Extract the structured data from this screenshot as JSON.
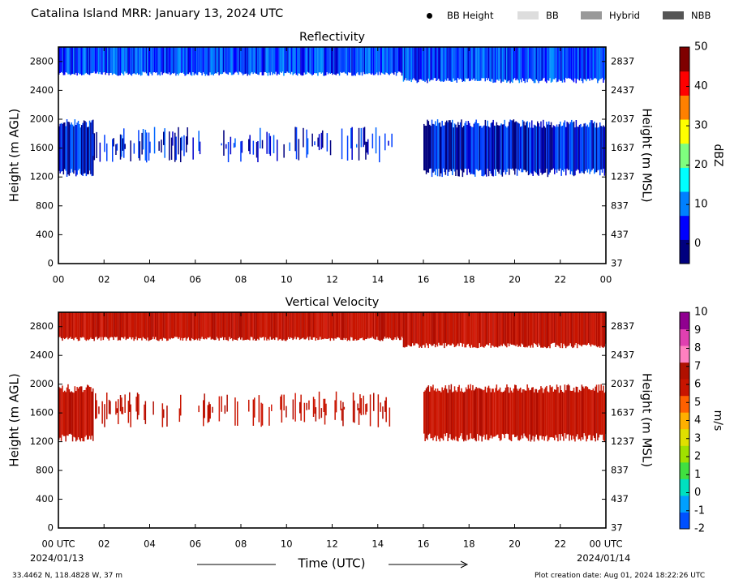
{
  "header": {
    "title": "Catalina Island MRR:  January 13, 2024 UTC",
    "legend": [
      {
        "kind": "marker",
        "label": "BB Height",
        "color": "#000000"
      },
      {
        "kind": "swatch",
        "label": "BB",
        "color": "#dddddd"
      },
      {
        "kind": "swatch",
        "label": "Hybrid",
        "color": "#999999"
      },
      {
        "kind": "swatch",
        "label": "NBB",
        "color": "#555555"
      }
    ]
  },
  "footer": {
    "location": "33.4462 N, 118.4828 W, 37 m",
    "creation": "Plot creation date: Aug 01, 2024 18:22:26 UTC",
    "date_start": "2024/01/13",
    "date_end": "2024/01/14",
    "xlabel": "Time (UTC)"
  },
  "chart_data": [
    {
      "type": "heatmap",
      "title": "Reflectivity",
      "xlabel": "",
      "ylabel": "Height (m AGL)",
      "ylabel_right": "Height (m MSL)",
      "x_ticks": [
        "00",
        "02",
        "04",
        "06",
        "08",
        "10",
        "12",
        "14",
        "16",
        "18",
        "20",
        "22",
        "00"
      ],
      "x_range_hours": [
        0,
        24
      ],
      "y_ticks": [
        0,
        400,
        800,
        1200,
        1600,
        2000,
        2400,
        2800
      ],
      "y_ticks_right": [
        37,
        437,
        837,
        1237,
        1637,
        2037,
        2437,
        2837
      ],
      "ylim": [
        0,
        3000
      ],
      "colorbar": {
        "label": "dBZ",
        "range": [
          -5,
          50
        ],
        "ticks": [
          0,
          10,
          20,
          30,
          40,
          50
        ],
        "colors": [
          "#00007f",
          "#0000ff",
          "#0080ff",
          "#00ffff",
          "#7fff7f",
          "#ffff00",
          "#ff8000",
          "#ff0000",
          "#7f0000"
        ]
      },
      "layers": [
        {
          "name": "upper",
          "x_start": 0,
          "x_end": 15.1,
          "y_bottom": 2600,
          "y_top": 3000,
          "value": 5
        },
        {
          "name": "upper",
          "x_start": 15.1,
          "x_end": 24,
          "y_bottom": 2500,
          "y_top": 3000,
          "value": 5
        },
        {
          "name": "lower",
          "x_start": 0,
          "x_end": 1.5,
          "y_bottom": 1200,
          "y_top": 2000,
          "value": 1
        },
        {
          "name": "lower",
          "x_start": 1.5,
          "x_end": 14.6,
          "y_bottom": 1400,
          "y_top": 1900,
          "value": 0
        },
        {
          "name": "lower",
          "x_start": 16.0,
          "x_end": 24,
          "y_bottom": 1200,
          "y_top": 2000,
          "value": 1
        }
      ]
    },
    {
      "type": "heatmap",
      "title": "Vertical Velocity",
      "xlabel": "Time (UTC)",
      "ylabel": "Height (m AGL)",
      "ylabel_right": "Height (m MSL)",
      "x_ticks": [
        "00 UTC",
        "02",
        "04",
        "06",
        "08",
        "10",
        "12",
        "14",
        "16",
        "18",
        "20",
        "22",
        "00 UTC"
      ],
      "x_range_hours": [
        0,
        24
      ],
      "y_ticks": [
        0,
        400,
        800,
        1200,
        1600,
        2000,
        2400,
        2800
      ],
      "y_ticks_right": [
        37,
        437,
        837,
        1237,
        1637,
        2037,
        2437,
        2837
      ],
      "ylim": [
        0,
        3000
      ],
      "colorbar": {
        "label": "m/s",
        "range": [
          -2,
          10
        ],
        "ticks": [
          -2,
          -1,
          0,
          1,
          2,
          3,
          4,
          5,
          6,
          7,
          8,
          9,
          10
        ],
        "colors": [
          "#0050ff",
          "#00a0ff",
          "#00e0c0",
          "#40e040",
          "#a0e000",
          "#e0e000",
          "#ffb000",
          "#ff6000",
          "#c81400",
          "#b01000",
          "#ff80c0",
          "#e040b0",
          "#900090"
        ]
      },
      "layers": [
        {
          "name": "upper",
          "x_start": 0,
          "x_end": 15.1,
          "y_bottom": 2600,
          "y_top": 3000,
          "value": 5.5
        },
        {
          "name": "upper",
          "x_start": 15.1,
          "x_end": 24,
          "y_bottom": 2500,
          "y_top": 3000,
          "value": 5.5
        },
        {
          "name": "lower",
          "x_start": 0,
          "x_end": 1.5,
          "y_bottom": 1200,
          "y_top": 2000,
          "value": 5.5
        },
        {
          "name": "lower",
          "x_start": 1.5,
          "x_end": 14.6,
          "y_bottom": 1400,
          "y_top": 1900,
          "value": 5.5
        },
        {
          "name": "lower",
          "x_start": 16.0,
          "x_end": 24,
          "y_bottom": 1200,
          "y_top": 2000,
          "value": 5.5
        }
      ]
    }
  ]
}
